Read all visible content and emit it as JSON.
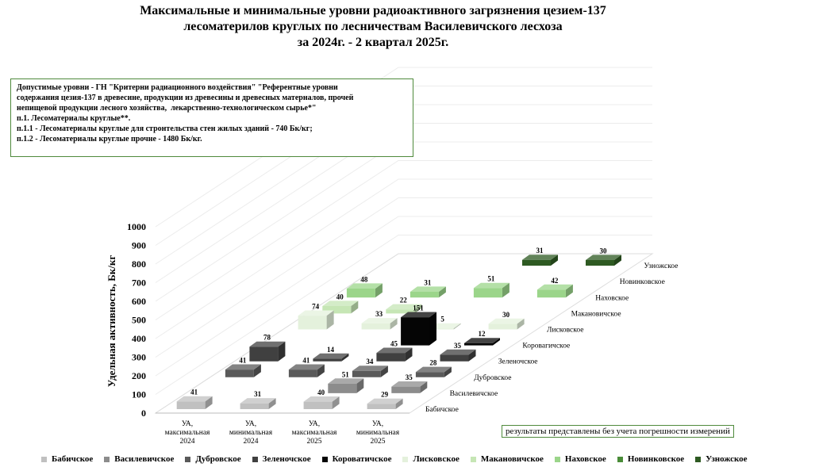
{
  "title_lines": [
    "Максимальные и минимальные уровни радиоактивного загрязнения цезием-137",
    "лесоматерилов круглых по лесничествам Василевичского лесхоза",
    "за 2024г. - 2 квартал 2025г."
  ],
  "note_lines": [
    "Допустимые уровни - ГН \"Критерни радиационного воздействия\" \"Референтные уровни",
    "содержания цезия-137 в древесине, продукции из древесины и древесных матерналов, прочей",
    "непищевой продукции лесного хозяйства,  лекарственно-технологическом сырье*\"",
    "п.1. Лесоматериалы круглые**.",
    "п.1.1 - Лесоматериалы круглые для стронтельства стен жилых зданий - 740 Бк/кг;",
    "п.1.2 - Лесоматериалы круглые прочне - 1480 Бк/кг."
  ],
  "footnote": "результаты представлены без учета погрешности измерений",
  "chart_data": {
    "type": "bar",
    "subtype": "3d-clustered",
    "title": "Максимальные и минимальные уровни радиоактивного загрязнения цезием-137 лесоматерилов круглых по лесничествам Василевичского лесхоза за 2024г. - 2 квартал 2025г.",
    "ylabel": "Удельная активность, Бк/кг",
    "ylim": [
      0,
      1000
    ],
    "yticks": [
      "0",
      "100",
      "200",
      "300",
      "400",
      "500",
      "600",
      "700",
      "800",
      "900",
      "1000"
    ],
    "categories": [
      [
        "УА,",
        "максимальная",
        "2024"
      ],
      [
        "УА,",
        "минимальная",
        "2024"
      ],
      [
        "УА,",
        "максимальная",
        "2025"
      ],
      [
        "УА,",
        "минимальная",
        "2025"
      ]
    ],
    "depth_labels": [
      "Бабичское",
      "Василевичское",
      "Дубровское",
      "Зеленочское",
      "Коровагичское",
      "Лисковское",
      "Макановичское",
      "Наховское",
      "Новинковское",
      "Узножское"
    ],
    "legend_position": "bottom",
    "series": [
      {
        "name": "Бабичское",
        "color": "#c0c0c0",
        "values": [
          41,
          31,
          40,
          29
        ]
      },
      {
        "name": "Василевичское",
        "color": "#8c8c8c",
        "values": [
          null,
          null,
          51,
          35
        ]
      },
      {
        "name": "Дубровское",
        "color": "#5a5a5a",
        "values": [
          41,
          41,
          34,
          28
        ]
      },
      {
        "name": "Зеленочское",
        "color": "#404040",
        "values": [
          78,
          14,
          45,
          35
        ]
      },
      {
        "name": "Короватичское",
        "color": "#050505",
        "values": [
          null,
          null,
          151,
          12
        ]
      },
      {
        "name": "Лисковское",
        "color": "#e4f1dc",
        "values": [
          74,
          33,
          5,
          30
        ]
      },
      {
        "name": "Макановичское",
        "color": "#c6e6b5",
        "values": [
          40,
          22,
          null,
          null
        ]
      },
      {
        "name": "Наховское",
        "color": "#9bd58a",
        "values": [
          48,
          31,
          51,
          42
        ]
      },
      {
        "name": "Новинковское",
        "color": "#4a8c38",
        "values": [
          null,
          null,
          null,
          null
        ]
      },
      {
        "name": "Узножское",
        "color": "#2e5a22",
        "values": [
          null,
          null,
          31,
          30
        ]
      }
    ]
  }
}
